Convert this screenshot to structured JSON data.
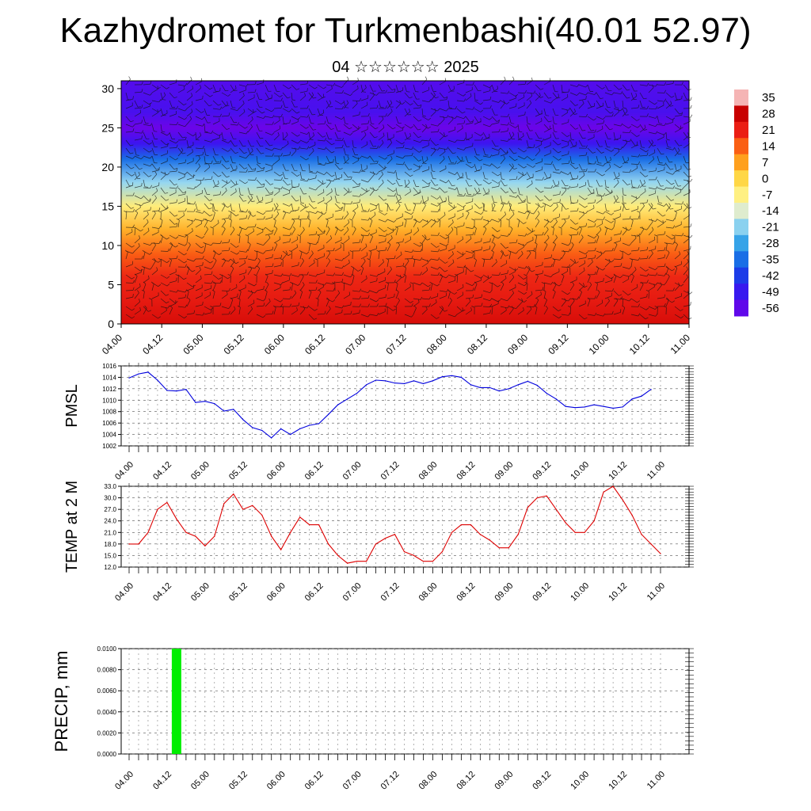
{
  "title": "Kazhydromet for Turkmenbashi(40.01 52.97)",
  "subtitle": "04 ☆☆☆☆☆☆ 2025",
  "time_ticks": [
    "04.00",
    "04.12",
    "05.00",
    "05.12",
    "06.00",
    "06.12",
    "07.00",
    "07.12",
    "08.00",
    "08.12",
    "09.00",
    "09.12",
    "10.00",
    "10.12",
    "11.00"
  ],
  "chart_data": [
    {
      "id": "cross_section",
      "type": "heatmap",
      "title": "Kazhydromet for Turkmenbashi(40.01 52.97)",
      "subtitle": "04 ☆☆☆☆☆☆ 2025",
      "xlabel": "",
      "ylabel": "",
      "x_ticks": [
        "04.00",
        "04.12",
        "05.00",
        "05.12",
        "06.00",
        "06.12",
        "07.00",
        "07.12",
        "08.00",
        "08.12",
        "09.00",
        "09.12",
        "10.00",
        "10.12",
        "11.00"
      ],
      "y_ticks": [
        0,
        5,
        10,
        15,
        20,
        25,
        30
      ],
      "ylim": [
        0,
        31
      ],
      "colorbar_labels": [
        "35",
        "28",
        "21",
        "14",
        "7",
        "0",
        "-7",
        "-14",
        "-21",
        "-28",
        "-35",
        "-42",
        "-49",
        "-56"
      ],
      "temperature_by_level": [
        {
          "level": 0,
          "value": 25
        },
        {
          "level": 3,
          "value": 22
        },
        {
          "level": 6,
          "value": 20
        },
        {
          "level": 9,
          "value": 14
        },
        {
          "level": 12,
          "value": 5
        },
        {
          "level": 15,
          "value": -6
        },
        {
          "level": 18,
          "value": -20
        },
        {
          "level": 21,
          "value": -35
        },
        {
          "level": 23,
          "value": -50
        },
        {
          "level": 25,
          "value": -58
        },
        {
          "level": 27,
          "value": -52
        },
        {
          "level": 31,
          "value": -54
        }
      ],
      "overlay": "wind barbs"
    },
    {
      "id": "pmsl",
      "type": "line",
      "ylabel": "PMSL",
      "y_ticks": [
        "1016",
        "1014",
        "1012",
        "1010",
        "1008",
        "1006",
        "1004",
        "1002"
      ],
      "ylim": [
        1002,
        1016
      ],
      "x_ticks": [
        "04.00",
        "04.12",
        "05.00",
        "05.12",
        "06.00",
        "06.12",
        "07.00",
        "07.12",
        "08.00",
        "08.12",
        "09.00",
        "09.12",
        "10.00",
        "10.12",
        "11.00"
      ],
      "color": "#0000dd",
      "x_hours": [
        0,
        3,
        6,
        9,
        12,
        15,
        18,
        21,
        24,
        27,
        30,
        33,
        36,
        39,
        42,
        45,
        48,
        51,
        54,
        57,
        60,
        63,
        66,
        69,
        72,
        75,
        78,
        81,
        84,
        87,
        90,
        93,
        96,
        99,
        102,
        105,
        108,
        111,
        114,
        117,
        120,
        123,
        126,
        129,
        132,
        135,
        138,
        141,
        144,
        147,
        150,
        153,
        156,
        159,
        162,
        165,
        168
      ],
      "values": [
        1013.9,
        1014.6,
        1014.9,
        1013.5,
        1011.7,
        1011.6,
        1011.9,
        1009.6,
        1009.8,
        1009.4,
        1008.1,
        1008.4,
        1006.6,
        1005.2,
        1004.7,
        1003.4,
        1005.0,
        1004.0,
        1005.0,
        1005.6,
        1005.9,
        1007.5,
        1009.2,
        1010.2,
        1011.2,
        1012.7,
        1013.5,
        1013.4,
        1013.0,
        1012.9,
        1013.4,
        1012.9,
        1013.4,
        1014.1,
        1014.3,
        1014.0,
        1012.7,
        1012.2,
        1012.2,
        1011.6,
        1012.0,
        1012.7,
        1013.3,
        1012.6,
        1011.2,
        1010.2,
        1008.9,
        1008.7,
        1008.8,
        1009.2,
        1008.9,
        1008.6,
        1008.8,
        1010.2,
        1010.7,
        1011.9,
        null
      ]
    },
    {
      "id": "temp2m",
      "type": "line",
      "ylabel": "TEMP at 2 M",
      "y_ticks": [
        "33.0",
        "30.0",
        "27.0",
        "24.0",
        "21.0",
        "18.0",
        "15.0",
        "12.0"
      ],
      "ylim": [
        12,
        33
      ],
      "x_ticks": [
        "04.00",
        "04.12",
        "05.00",
        "05.12",
        "06.00",
        "06.12",
        "07.00",
        "07.12",
        "08.00",
        "08.12",
        "09.00",
        "09.12",
        "10.00",
        "10.12",
        "11.00"
      ],
      "color": "#dd0000",
      "x_hours": [
        0,
        3,
        6,
        9,
        12,
        15,
        18,
        21,
        24,
        27,
        30,
        33,
        36,
        39,
        42,
        45,
        48,
        51,
        54,
        57,
        60,
        63,
        66,
        69,
        72,
        75,
        78,
        81,
        84,
        87,
        90,
        93,
        96,
        99,
        102,
        105,
        108,
        111,
        114,
        117,
        120,
        123,
        126,
        129,
        132,
        135,
        138,
        141,
        144,
        147,
        150,
        153,
        156,
        159,
        162,
        165,
        168
      ],
      "values": [
        18.0,
        18.0,
        21.0,
        27.0,
        28.8,
        24.5,
        21.0,
        20.0,
        17.5,
        20.0,
        28.5,
        31.0,
        27.0,
        28.0,
        25.5,
        20.0,
        16.5,
        21.0,
        25.0,
        23.0,
        23.0,
        18.0,
        15.0,
        13.0,
        13.5,
        13.5,
        18.0,
        19.5,
        20.5,
        16.0,
        15.0,
        13.5,
        13.5,
        16.0,
        21.0,
        23.0,
        23.0,
        20.5,
        19.0,
        17.0,
        17.0,
        20.5,
        27.5,
        30.0,
        30.5,
        27.0,
        23.5,
        21.0,
        21.0,
        24.0,
        31.5,
        33.0,
        29.5,
        25.5,
        20.5,
        18.0,
        15.5
      ]
    },
    {
      "id": "precip",
      "type": "bar",
      "ylabel": "PRECIP, mm",
      "y_ticks": [
        "0.0100",
        "0.0080",
        "0.0060",
        "0.0040",
        "0.0020",
        "0.0000"
      ],
      "ylim": [
        0,
        0.01
      ],
      "x_ticks": [
        "04.00",
        "04.12",
        "05.00",
        "05.12",
        "06.00",
        "06.12",
        "07.00",
        "07.12",
        "08.00",
        "08.12",
        "09.00",
        "09.12",
        "10.00",
        "10.12",
        "11.00"
      ],
      "color": "#00ee00",
      "bars": [
        {
          "x_hour": 15,
          "value": 0.01
        }
      ]
    }
  ]
}
